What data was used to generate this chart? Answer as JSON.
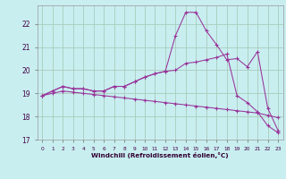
{
  "xlabel": "Windchill (Refroidissement éolien,°C)",
  "bg_color": "#c8eef0",
  "line_color": "#993399",
  "grid_color": "#aaccbb",
  "xlim": [
    -0.5,
    23.5
  ],
  "ylim": [
    17,
    22.8
  ],
  "yticks": [
    17,
    18,
    19,
    20,
    21,
    22
  ],
  "xticks": [
    0,
    1,
    2,
    3,
    4,
    5,
    6,
    7,
    8,
    9,
    10,
    11,
    12,
    13,
    14,
    15,
    16,
    17,
    18,
    19,
    20,
    21,
    22,
    23
  ],
  "hours": [
    0,
    1,
    2,
    3,
    4,
    5,
    6,
    7,
    8,
    9,
    10,
    11,
    12,
    13,
    14,
    15,
    16,
    17,
    18,
    19,
    20,
    21,
    22,
    23
  ],
  "lineA": [
    18.9,
    19.1,
    19.3,
    19.2,
    19.2,
    19.1,
    19.1,
    19.3,
    19.3,
    19.5,
    19.7,
    19.85,
    19.95,
    21.5,
    22.5,
    22.5,
    21.7,
    21.1,
    20.45,
    20.5,
    20.15,
    20.8,
    18.35,
    17.4
  ],
  "lineB": [
    18.9,
    19.1,
    19.3,
    19.2,
    19.2,
    19.1,
    19.1,
    19.3,
    19.3,
    19.5,
    19.7,
    19.85,
    19.95,
    20.0,
    20.3,
    20.35,
    20.45,
    20.55,
    20.7,
    18.9,
    18.6,
    18.2,
    17.6,
    17.3
  ],
  "lineC": [
    18.9,
    19.0,
    19.1,
    19.05,
    19.0,
    18.95,
    18.9,
    18.85,
    18.8,
    18.75,
    18.7,
    18.65,
    18.6,
    18.55,
    18.5,
    18.45,
    18.4,
    18.35,
    18.3,
    18.25,
    18.2,
    18.15,
    18.05,
    17.95
  ]
}
